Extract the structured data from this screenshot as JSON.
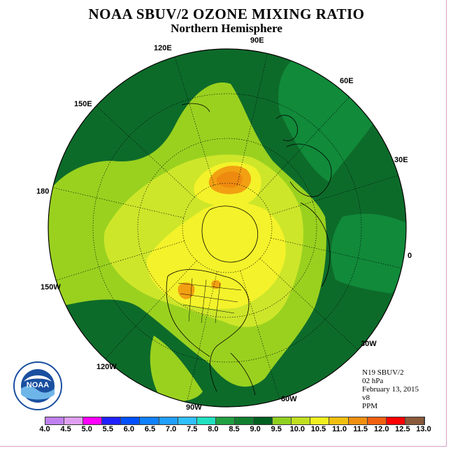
{
  "header": {
    "title": "NOAA SBUV/2 OZONE MIXING RATIO",
    "subtitle": "Northern Hemisphere"
  },
  "longitude_labels": {
    "lon_90e": "90E",
    "lon_60e": "60E",
    "lon_30e": "30E",
    "lon_0": "0",
    "lon_30w": "30W",
    "lon_60w": "60W",
    "lon_90w": "90W",
    "lon_120w": "120W",
    "lon_150w": "150W",
    "lon_180": "180",
    "lon_150e": "150E",
    "lon_120e": "120E"
  },
  "info": {
    "satellite": "N19 SBUV/2",
    "level": "02 hPa",
    "date": "February 13, 2015",
    "version": "v8",
    "units": "PPM"
  },
  "logo_text": "NOAA",
  "legend": {
    "ticks": [
      "4.0",
      "4.5",
      "5.0",
      "5.5",
      "6.0",
      "6.5",
      "7.0",
      "7.5",
      "8.0",
      "8.5",
      "9.0",
      "9.5",
      "10.0",
      "10.5",
      "11.0",
      "11.5",
      "12.0",
      "12.5",
      "13.0"
    ],
    "colors": [
      "#c080f0",
      "#e0a0f0",
      "#ff00ff",
      "#2020ff",
      "#0050ff",
      "#1080ff",
      "#20a0ff",
      "#30c0ff",
      "#20e0c0",
      "#20a040",
      "#108030",
      "#006020",
      "#90d020",
      "#c0e020",
      "#f0f020",
      "#f0c010",
      "#f09010",
      "#f06010",
      "#ff0000",
      "#8a5a3a"
    ]
  },
  "colors": {
    "dark_green": "#0d6b2a",
    "mid_green": "#118a3a",
    "light_green": "#9ad11f",
    "yellow_green": "#cde62a",
    "yellow": "#f4f22a",
    "orange": "#f2a012",
    "dark_orange": "#ee8a10"
  }
}
